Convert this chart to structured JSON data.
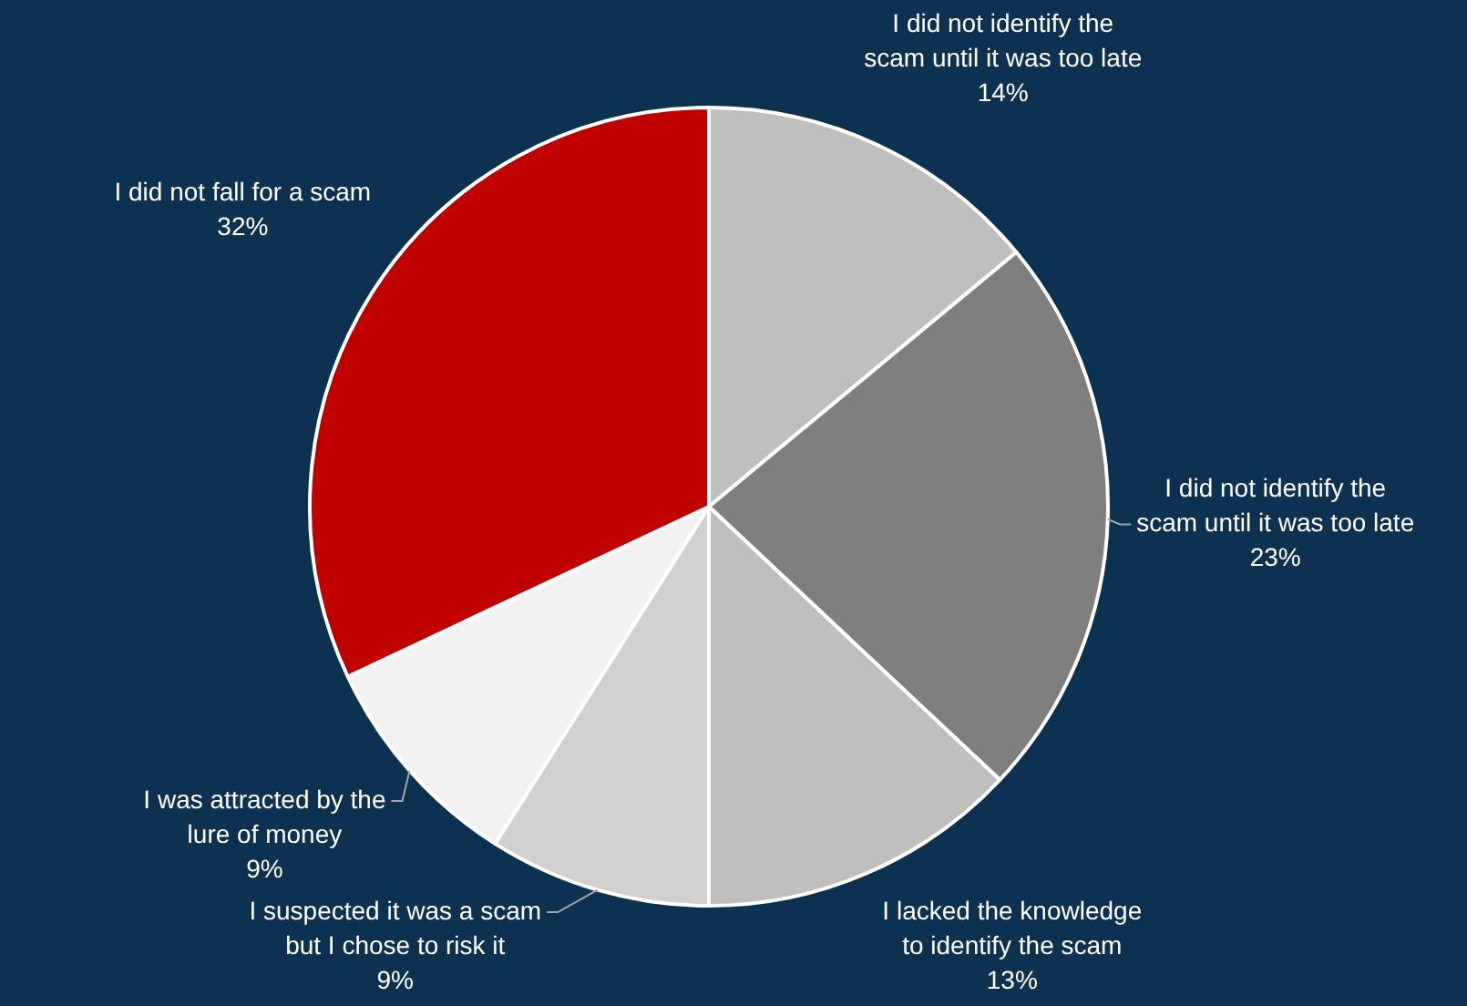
{
  "chart_data": {
    "type": "pie",
    "categories": [
      "I did not identify the scam until it was too late",
      "I did not identify the scam until it was too late",
      "I lacked the knowledge to identify the scam",
      "I suspected it was a scam but I chose to risk it",
      "I was attracted by the lure of money",
      "I did not fall for a scam"
    ],
    "values": [
      14,
      23,
      13,
      9,
      9,
      32
    ],
    "colors": [
      "#bfbfbf",
      "#7f7f7f",
      "#bfbfbf",
      "#d0d0d0",
      "#f2f2f2",
      "#c00000"
    ],
    "value_labels": [
      "14%",
      "23%",
      "13%",
      "9%",
      "9%",
      "32%"
    ],
    "legend": false
  }
}
